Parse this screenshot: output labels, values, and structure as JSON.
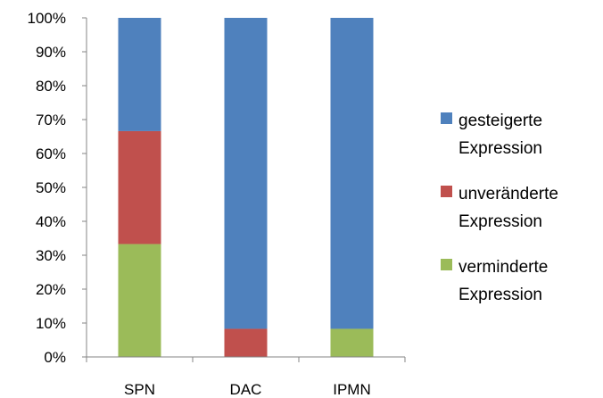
{
  "chart_data": {
    "type": "bar",
    "stacked": true,
    "categories": [
      "SPN",
      "DAC",
      "IPMN"
    ],
    "series": [
      {
        "name": "verminderte\nExpression",
        "color": "#9bbb59",
        "values": [
          33.3,
          0,
          8.3
        ]
      },
      {
        "name": "unveränderte\nExpression",
        "color": "#c0504d",
        "values": [
          33.3,
          8.3,
          0
        ]
      },
      {
        "name": "gesteigerte\nExpression",
        "color": "#4f81bd",
        "values": [
          33.4,
          91.7,
          91.7
        ]
      }
    ],
    "ylim": [
      0,
      100
    ],
    "yticks": [
      "0%",
      "10%",
      "20%",
      "30%",
      "40%",
      "50%",
      "60%",
      "70%",
      "80%",
      "90%",
      "100%"
    ],
    "grid": false,
    "legend_position": "right"
  }
}
